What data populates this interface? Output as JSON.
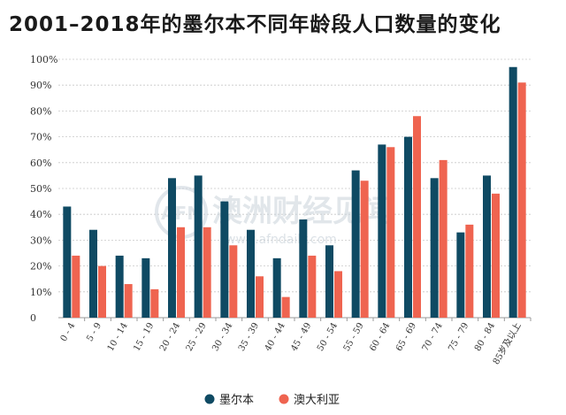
{
  "chart_data": {
    "type": "bar",
    "title": "2001–2018年的墨尔本不同年龄段人口数量的变化",
    "categories": [
      "0 - 4",
      "5 - 9",
      "10 - 14",
      "15 - 19",
      "20 - 24",
      "25 - 29",
      "30 - 34",
      "35 - 39",
      "40 - 44",
      "45 - 49",
      "50 - 54",
      "55 - 59",
      "60 - 64",
      "65 - 69",
      "70 - 74",
      "75 - 79",
      "80 - 84",
      "85岁及以上"
    ],
    "series": [
      {
        "name": "墨尔本",
        "color": "#0f4a63",
        "values": [
          43,
          34,
          24,
          23,
          54,
          55,
          45,
          34,
          23,
          38,
          28,
          57,
          67,
          70,
          54,
          33,
          55,
          97
        ]
      },
      {
        "name": "澳大利亚",
        "color": "#ef6450",
        "values": [
          24,
          20,
          13,
          11,
          35,
          35,
          28,
          16,
          8,
          24,
          18,
          53,
          66,
          78,
          61,
          36,
          48,
          91
        ]
      }
    ],
    "ylim": [
      0,
      100
    ],
    "yticks": [
      "0",
      "10%",
      "20%",
      "30%",
      "40%",
      "50%",
      "60%",
      "70%",
      "80%",
      "90%",
      "100%"
    ],
    "grid": true,
    "legend_position": "bottom-center"
  },
  "watermark": {
    "text": "澳洲财经见闻",
    "url": "www.afndaily.com",
    "logo": "AFN"
  }
}
